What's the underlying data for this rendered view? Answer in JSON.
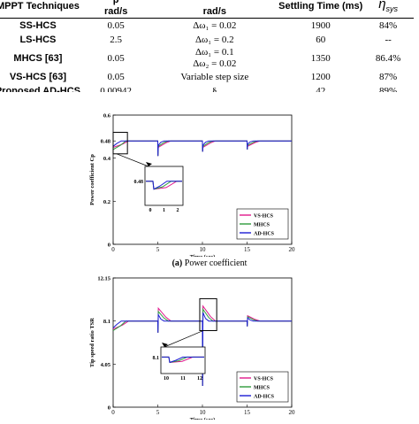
{
  "table": {
    "headers": {
      "technique": "MPPT Techniques",
      "col2_unit": "rad/s",
      "col2_prefix": "p",
      "col3_unit": "rad/s",
      "settling": "Settling Time (ms)",
      "efficiency_symbol": "η",
      "efficiency_sub": "sys"
    },
    "rows": [
      {
        "technique": "SS-HCS",
        "step": "0.05",
        "param1": "Δω₁ = 0.02",
        "param2": "",
        "settling": "1900",
        "efficiency": "84%"
      },
      {
        "technique": "LS-HCS",
        "step": "2.5",
        "param1": "Δω₁ = 0.2",
        "param2": "",
        "settling": "60",
        "efficiency": "--"
      },
      {
        "technique": "MHCS [63]",
        "step": "0.05",
        "param1": "Δω₁ = 0.1",
        "param2": "Δω₂ = 0.02",
        "settling": "1350",
        "efficiency": "86.4%"
      },
      {
        "technique": "VS-HCS [63]",
        "step": "0.05",
        "param1": "Variable step size",
        "param2": "",
        "settling": "1200",
        "efficiency": "87%"
      },
      {
        "technique": "Proposed AD-HCS",
        "step": "0.00942",
        "param1": "§",
        "param2": "",
        "settling": "42",
        "efficiency": "89%"
      }
    ]
  },
  "figures": {
    "colors": {
      "vs_hcs": "#e0188c",
      "mhcs": "#2e9b3c",
      "ad_hcs": "#1c1cd4",
      "axis": "#000000"
    },
    "chart_data": [
      {
        "type": "line",
        "caption_letter": "(a)",
        "caption_text": "Power coefficient",
        "ylabel": "Power coefficient Cp",
        "xlabel": "Time (sec)",
        "xlim": [
          0,
          20
        ],
        "ylim": [
          0,
          0.6
        ],
        "xticks": [
          "0",
          "5",
          "10",
          "15",
          "20"
        ],
        "yticks": [
          "0",
          "0.2",
          "0.4",
          "0.6"
        ],
        "ytick_extra": "0.48",
        "steady_value": 0.48,
        "legend": [
          "VS-HCS",
          "MHCS",
          "AD-HCS"
        ],
        "inset": {
          "xticks": [
            "0",
            "1",
            "2"
          ],
          "ytick": "0.48"
        }
      },
      {
        "type": "line",
        "caption_letter": "(b)",
        "caption_text": "",
        "ylabel": "Tip speed ratio TSR",
        "xlabel": "Time (sec)",
        "xlim": [
          0,
          20
        ],
        "ylim": [
          0,
          12.15
        ],
        "xticks": [
          "0",
          "5",
          "10",
          "15",
          "20"
        ],
        "yticks": [
          "0",
          "4.05",
          "8.1",
          "12.15"
        ],
        "steady_value": 8.1,
        "legend": [
          "VS-HCS",
          "MHCS",
          "AD-HCS"
        ],
        "inset": {
          "xticks": [
            "10",
            "11",
            "12"
          ],
          "ytick": "8.1"
        }
      }
    ]
  }
}
